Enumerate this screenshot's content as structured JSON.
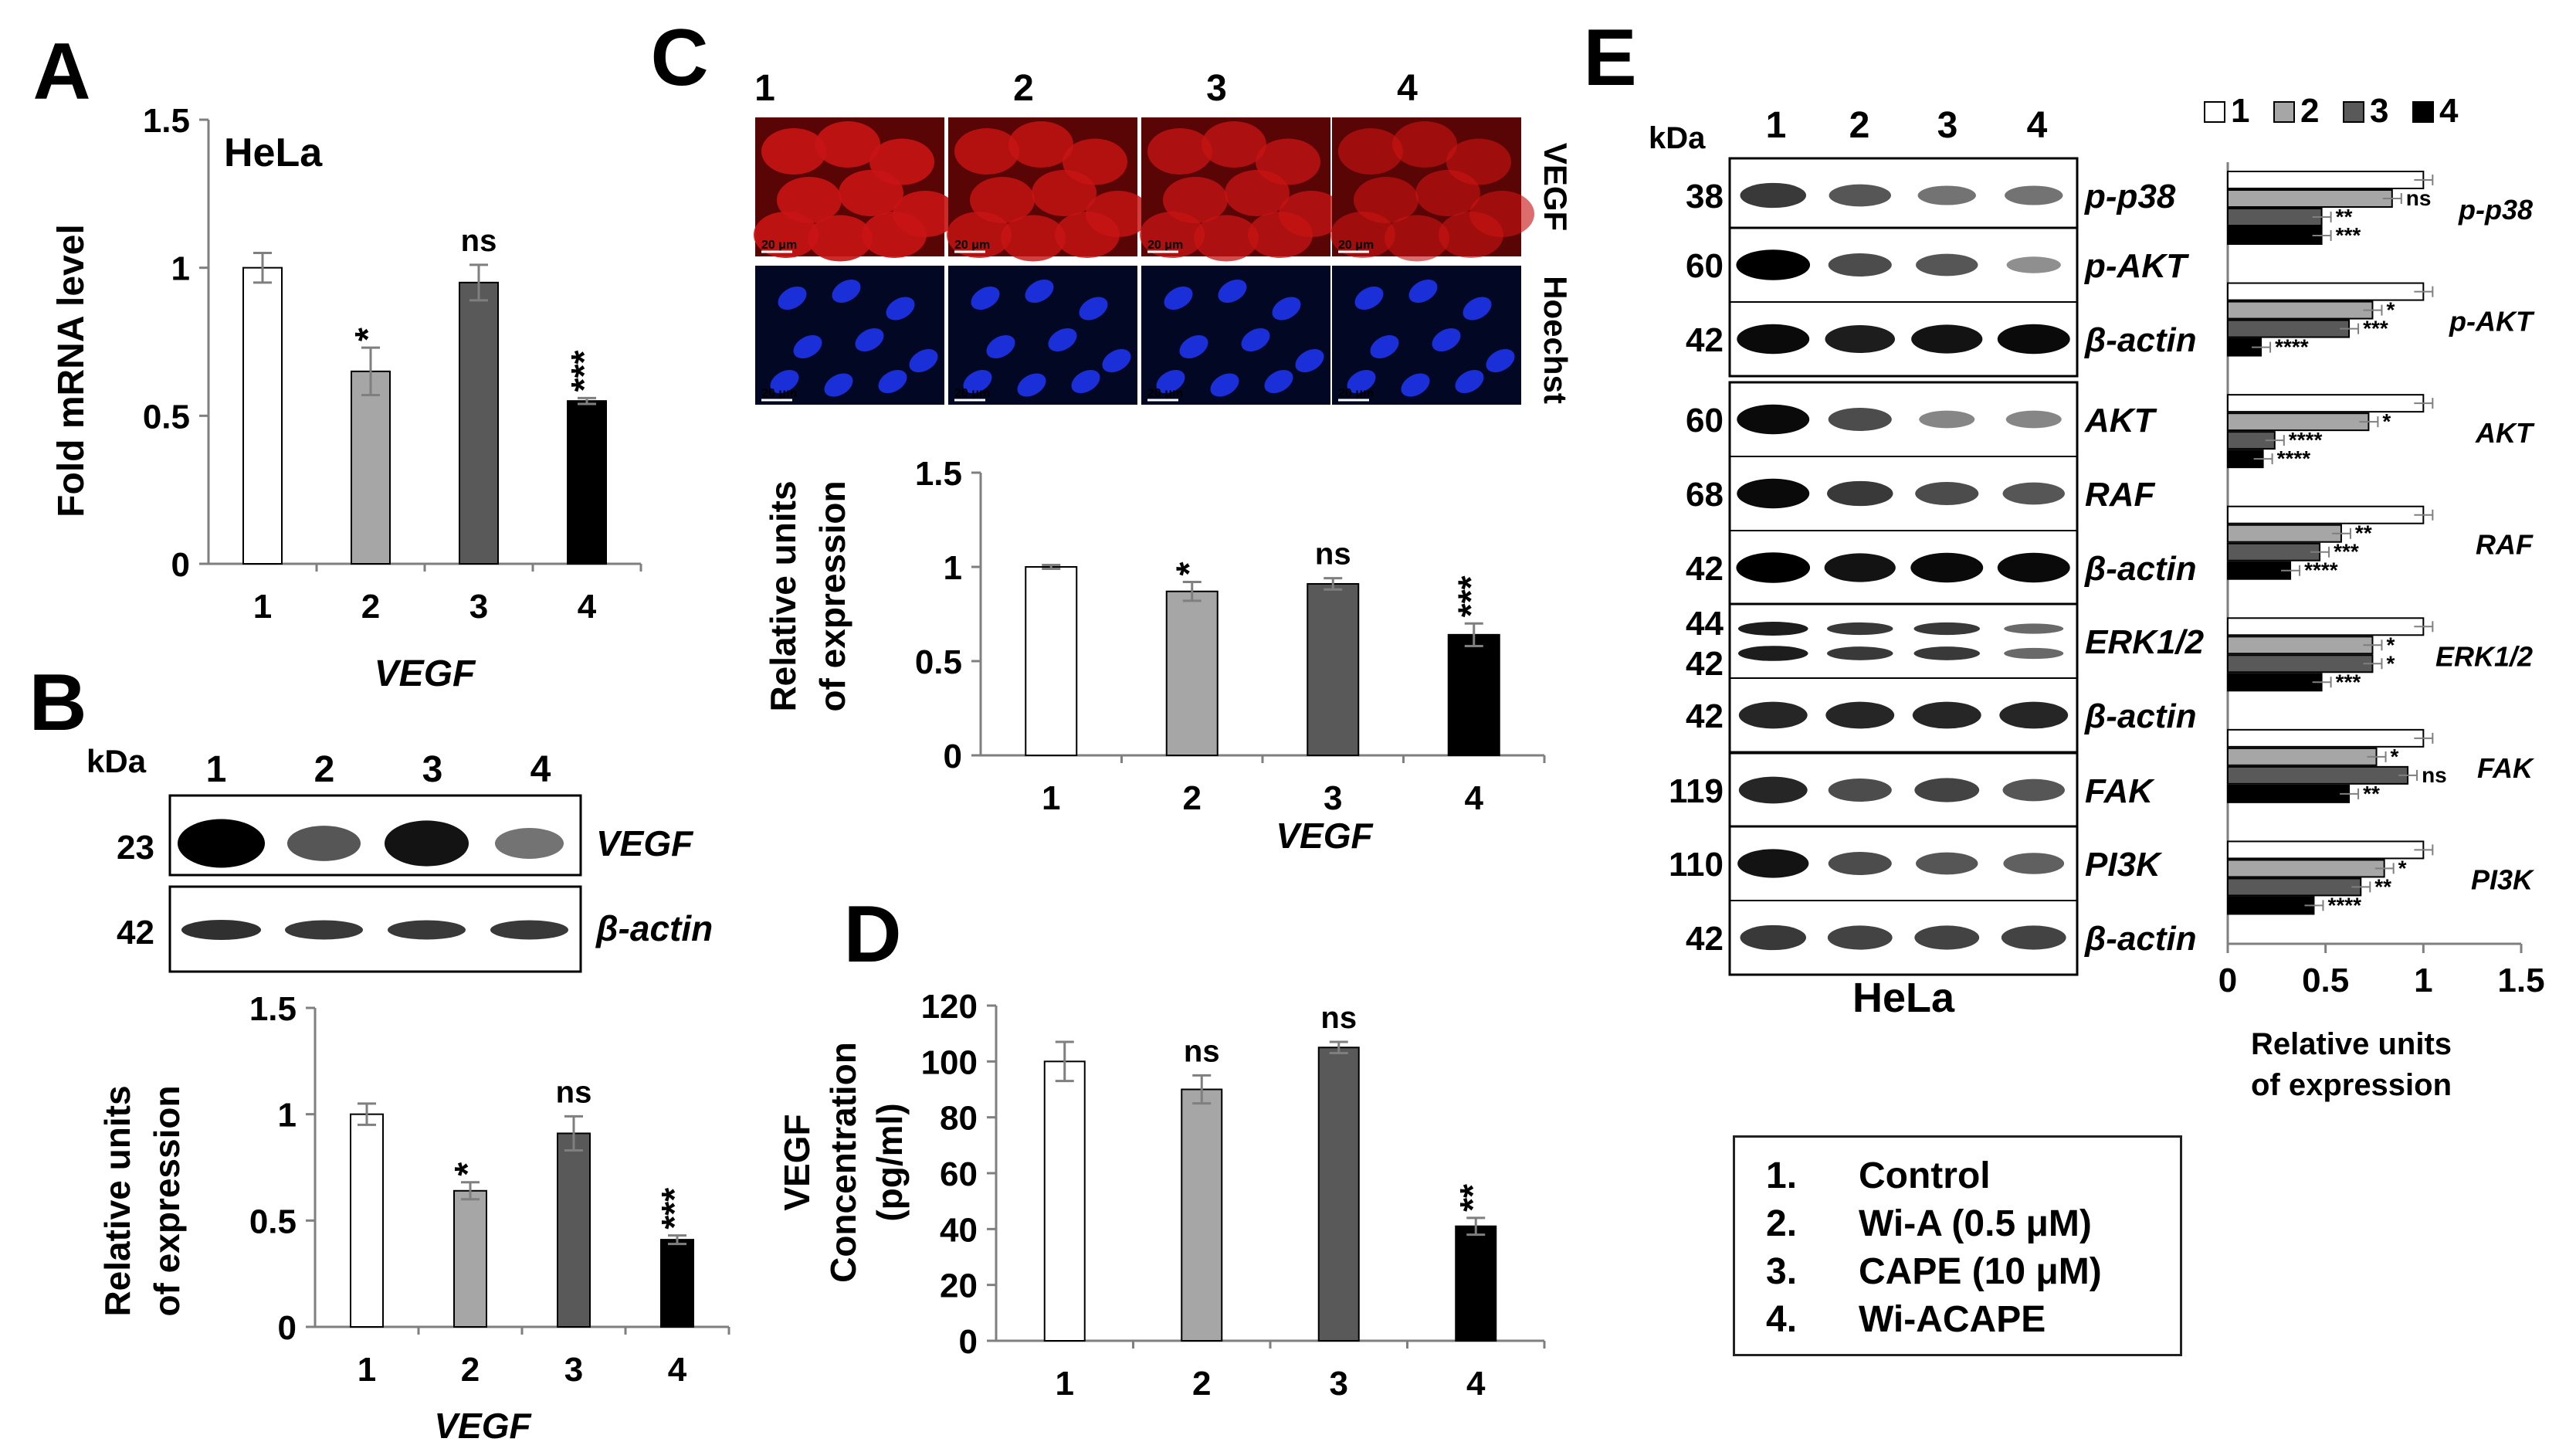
{
  "panel_letters": [
    "A",
    "B",
    "C",
    "D",
    "E"
  ],
  "colors": {
    "g1": "#ffffff",
    "g2": "#a6a6a6",
    "g3": "#595959",
    "g4": "#000000",
    "microscopy_red": "#c81414",
    "microscopy_blue": "#1a2fd8"
  },
  "chart_data": [
    {
      "panel": "A",
      "type": "bar",
      "title": "HeLa",
      "xlabel": "VEGF",
      "ylabel": "Fold mRNA level",
      "categories": [
        "1",
        "2",
        "3",
        "4"
      ],
      "values": [
        1.0,
        0.65,
        0.95,
        0.55
      ],
      "errors": [
        0.05,
        0.08,
        0.06,
        0.01
      ],
      "significance": [
        "",
        "*",
        "ns",
        "***"
      ],
      "ylim": [
        0,
        1.5
      ],
      "yticks": [
        "0",
        "0.5",
        "1",
        "1.5"
      ]
    },
    {
      "panel": "B",
      "type": "bar",
      "xlabel": "VEGF",
      "ylabel_line1": "Relative units",
      "ylabel_line2": "of expression",
      "categories": [
        "1",
        "2",
        "3",
        "4"
      ],
      "values": [
        1.0,
        0.64,
        0.91,
        0.41
      ],
      "errors": [
        0.05,
        0.04,
        0.08,
        0.02
      ],
      "significance": [
        "",
        "*",
        "ns",
        "***"
      ],
      "ylim": [
        0,
        1.5
      ],
      "yticks": [
        "0",
        "0.5",
        "1",
        "1.5"
      ]
    },
    {
      "panel": "C",
      "type": "bar",
      "xlabel": "VEGF",
      "ylabel_line1": "Relative units",
      "ylabel_line2": "of expression",
      "categories": [
        "1",
        "2",
        "3",
        "4"
      ],
      "values": [
        1.0,
        0.87,
        0.91,
        0.64
      ],
      "errors": [
        0.01,
        0.05,
        0.03,
        0.06
      ],
      "significance": [
        "",
        "*",
        "ns",
        "***"
      ],
      "ylim": [
        0,
        1.5
      ],
      "yticks": [
        "0",
        "0.5",
        "1",
        "1.5"
      ]
    },
    {
      "panel": "D",
      "type": "bar",
      "ylabel_line1": "VEGF",
      "ylabel_line2": "Concentration",
      "ylabel_line3": "(pg/ml)",
      "categories": [
        "1",
        "2",
        "3",
        "4"
      ],
      "values": [
        100,
        90,
        105,
        41
      ],
      "errors": [
        7,
        5,
        2,
        3
      ],
      "significance": [
        "",
        "ns",
        "ns",
        "**"
      ],
      "ylim": [
        0,
        120
      ],
      "yticks": [
        "0",
        "20",
        "40",
        "60",
        "80",
        "100",
        "120"
      ]
    },
    {
      "panel": "E",
      "type": "bar",
      "orientation": "horizontal",
      "xlabel_line1": "Relative units",
      "xlabel_line2": "of expression",
      "legend": [
        "1",
        "2",
        "3",
        "4"
      ],
      "xlim": [
        0,
        1.5
      ],
      "xticks": [
        "0",
        "0.5",
        "1",
        "1.5"
      ],
      "groups": [
        {
          "name": "p-p38",
          "values": [
            1.0,
            0.84,
            0.48,
            0.48
          ],
          "sig": [
            "",
            "ns",
            "**",
            "***"
          ]
        },
        {
          "name": "p-AKT",
          "values": [
            1.0,
            0.74,
            0.62,
            0.17
          ],
          "sig": [
            "",
            "*",
            "***",
            "****"
          ]
        },
        {
          "name": "AKT",
          "values": [
            1.0,
            0.72,
            0.24,
            0.18
          ],
          "sig": [
            "",
            "*",
            "****",
            "****"
          ]
        },
        {
          "name": "RAF",
          "values": [
            1.0,
            0.58,
            0.47,
            0.32
          ],
          "sig": [
            "",
            "**",
            "***",
            "****"
          ]
        },
        {
          "name": "ERK1/2",
          "values": [
            1.0,
            0.74,
            0.74,
            0.48
          ],
          "sig": [
            "",
            "*",
            "*",
            "***"
          ]
        },
        {
          "name": "FAK",
          "values": [
            1.0,
            0.76,
            0.92,
            0.62
          ],
          "sig": [
            "",
            "*",
            "ns",
            "**"
          ]
        },
        {
          "name": "PI3K",
          "values": [
            1.0,
            0.8,
            0.68,
            0.44
          ],
          "sig": [
            "",
            "*",
            "**",
            "****"
          ]
        }
      ]
    }
  ],
  "blot_B": {
    "kda_header": "kDa",
    "lanes": [
      "1",
      "2",
      "3",
      "4"
    ],
    "rows": [
      {
        "kda": "23",
        "label": "VEGF",
        "intensity": [
          1.0,
          0.55,
          0.9,
          0.4
        ]
      },
      {
        "kda": "42",
        "label": "β-actin",
        "intensity": [
          0.75,
          0.7,
          0.7,
          0.7
        ]
      }
    ]
  },
  "micro_C": {
    "lanes": [
      "1",
      "2",
      "3",
      "4"
    ],
    "rows": [
      "VEGF",
      "Hoechst"
    ],
    "scale_bar": "20 μm",
    "red_intensity": [
      1.0,
      0.85,
      0.75,
      0.5
    ]
  },
  "blot_E": {
    "kda_header": "kDa",
    "lanes": [
      "1",
      "2",
      "3",
      "4"
    ],
    "cell_label": "HeLa",
    "boxes": [
      [
        {
          "kda": "38",
          "label": "p-p38",
          "intensity": [
            0.7,
            0.55,
            0.4,
            0.4
          ]
        }
      ],
      [
        {
          "kda": "60",
          "label": "p-AKT",
          "intensity": [
            1.0,
            0.6,
            0.55,
            0.25
          ]
        },
        {
          "kda": "42",
          "label": "β-actin",
          "intensity": [
            0.95,
            0.85,
            0.9,
            0.95
          ]
        }
      ],
      [
        {
          "kda": "60",
          "label": "AKT",
          "intensity": [
            0.95,
            0.6,
            0.3,
            0.3
          ]
        },
        {
          "kda": "68",
          "label": "RAF",
          "intensity": [
            0.95,
            0.7,
            0.6,
            0.55
          ]
        },
        {
          "kda": "42",
          "label": "β-actin",
          "intensity": [
            1.0,
            0.9,
            0.95,
            0.95
          ]
        }
      ],
      [
        {
          "kda": "44",
          "kda2": "42",
          "label": "ERK1/2",
          "intensity": [
            0.85,
            0.7,
            0.7,
            0.45
          ]
        },
        {
          "kda": "42",
          "label": "β-actin",
          "intensity": [
            0.8,
            0.8,
            0.8,
            0.8
          ]
        }
      ],
      [
        {
          "kda": "119",
          "label": "FAK",
          "intensity": [
            0.8,
            0.6,
            0.65,
            0.55
          ]
        }
      ],
      [
        {
          "kda": "110",
          "label": "PI3K",
          "intensity": [
            0.9,
            0.6,
            0.55,
            0.5
          ]
        },
        {
          "kda": "42",
          "label": "β-actin",
          "intensity": [
            0.7,
            0.65,
            0.65,
            0.65
          ]
        }
      ]
    ]
  },
  "legend_box": [
    {
      "num": "1.",
      "text": "Control"
    },
    {
      "num": "2.",
      "text": "Wi-A (0.5 μM)"
    },
    {
      "num": "3.",
      "text": "CAPE (10 μM)"
    },
    {
      "num": "4.",
      "text": "Wi-ACAPE"
    }
  ]
}
